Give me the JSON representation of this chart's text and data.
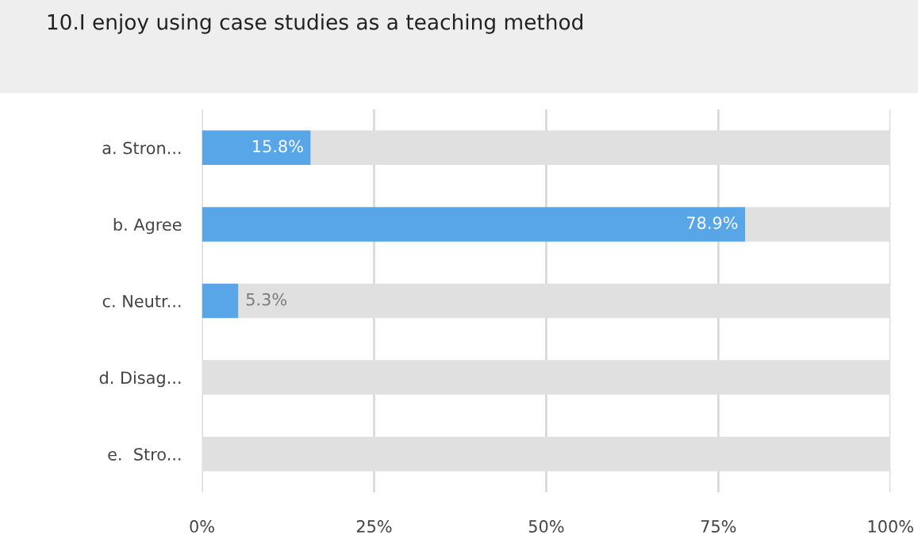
{
  "chart_data": {
    "type": "bar",
    "orientation": "horizontal",
    "stacked": true,
    "title": "10.I enjoy using case studies as a teaching method",
    "categories": [
      "a. Stron...",
      "b. Agree",
      "c. Neutr...",
      "d. Disag...",
      "e.  Stro..."
    ],
    "series": [
      {
        "color": "#58a6e8",
        "values": [
          15.8,
          78.9,
          5.3,
          0,
          0
        ],
        "value_labels": [
          "15.8%",
          "78.9%",
          "5.3%",
          null,
          null
        ]
      },
      {
        "color": "#e0e0e0",
        "values": [
          84.2,
          21.1,
          94.7,
          100,
          100
        ]
      }
    ],
    "xlim": [
      0,
      100
    ],
    "xticks": [
      {
        "value": 0,
        "label": "0%"
      },
      {
        "value": 25,
        "label": "25%"
      },
      {
        "value": 50,
        "label": "50%"
      },
      {
        "value": 75,
        "label": "75%"
      },
      {
        "value": 100,
        "label": "100%"
      }
    ],
    "grid": "x",
    "legend": false
  }
}
